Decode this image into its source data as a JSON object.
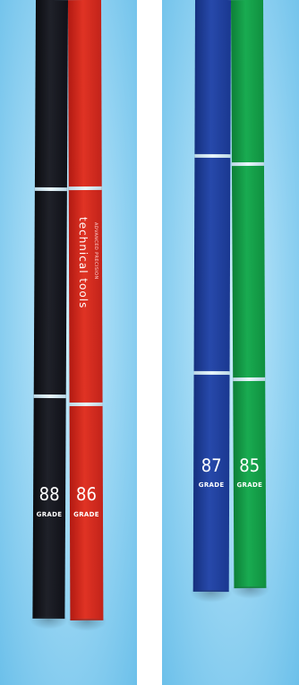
{
  "pencils": [
    {
      "id": "black",
      "color": "#16181f",
      "number": "88",
      "grade_word": "GRADE"
    },
    {
      "id": "red",
      "color": "#d82a1f",
      "number": "86",
      "grade_word": "GRADE",
      "brand": "technical tools",
      "brand_sub": "ADVANCED PRECISION"
    },
    {
      "id": "blue",
      "color": "#1f3f9e",
      "number": "87",
      "grade_word": "GRADE"
    },
    {
      "id": "green",
      "color": "#15a14a",
      "number": "85",
      "grade_word": "GRADE"
    }
  ]
}
